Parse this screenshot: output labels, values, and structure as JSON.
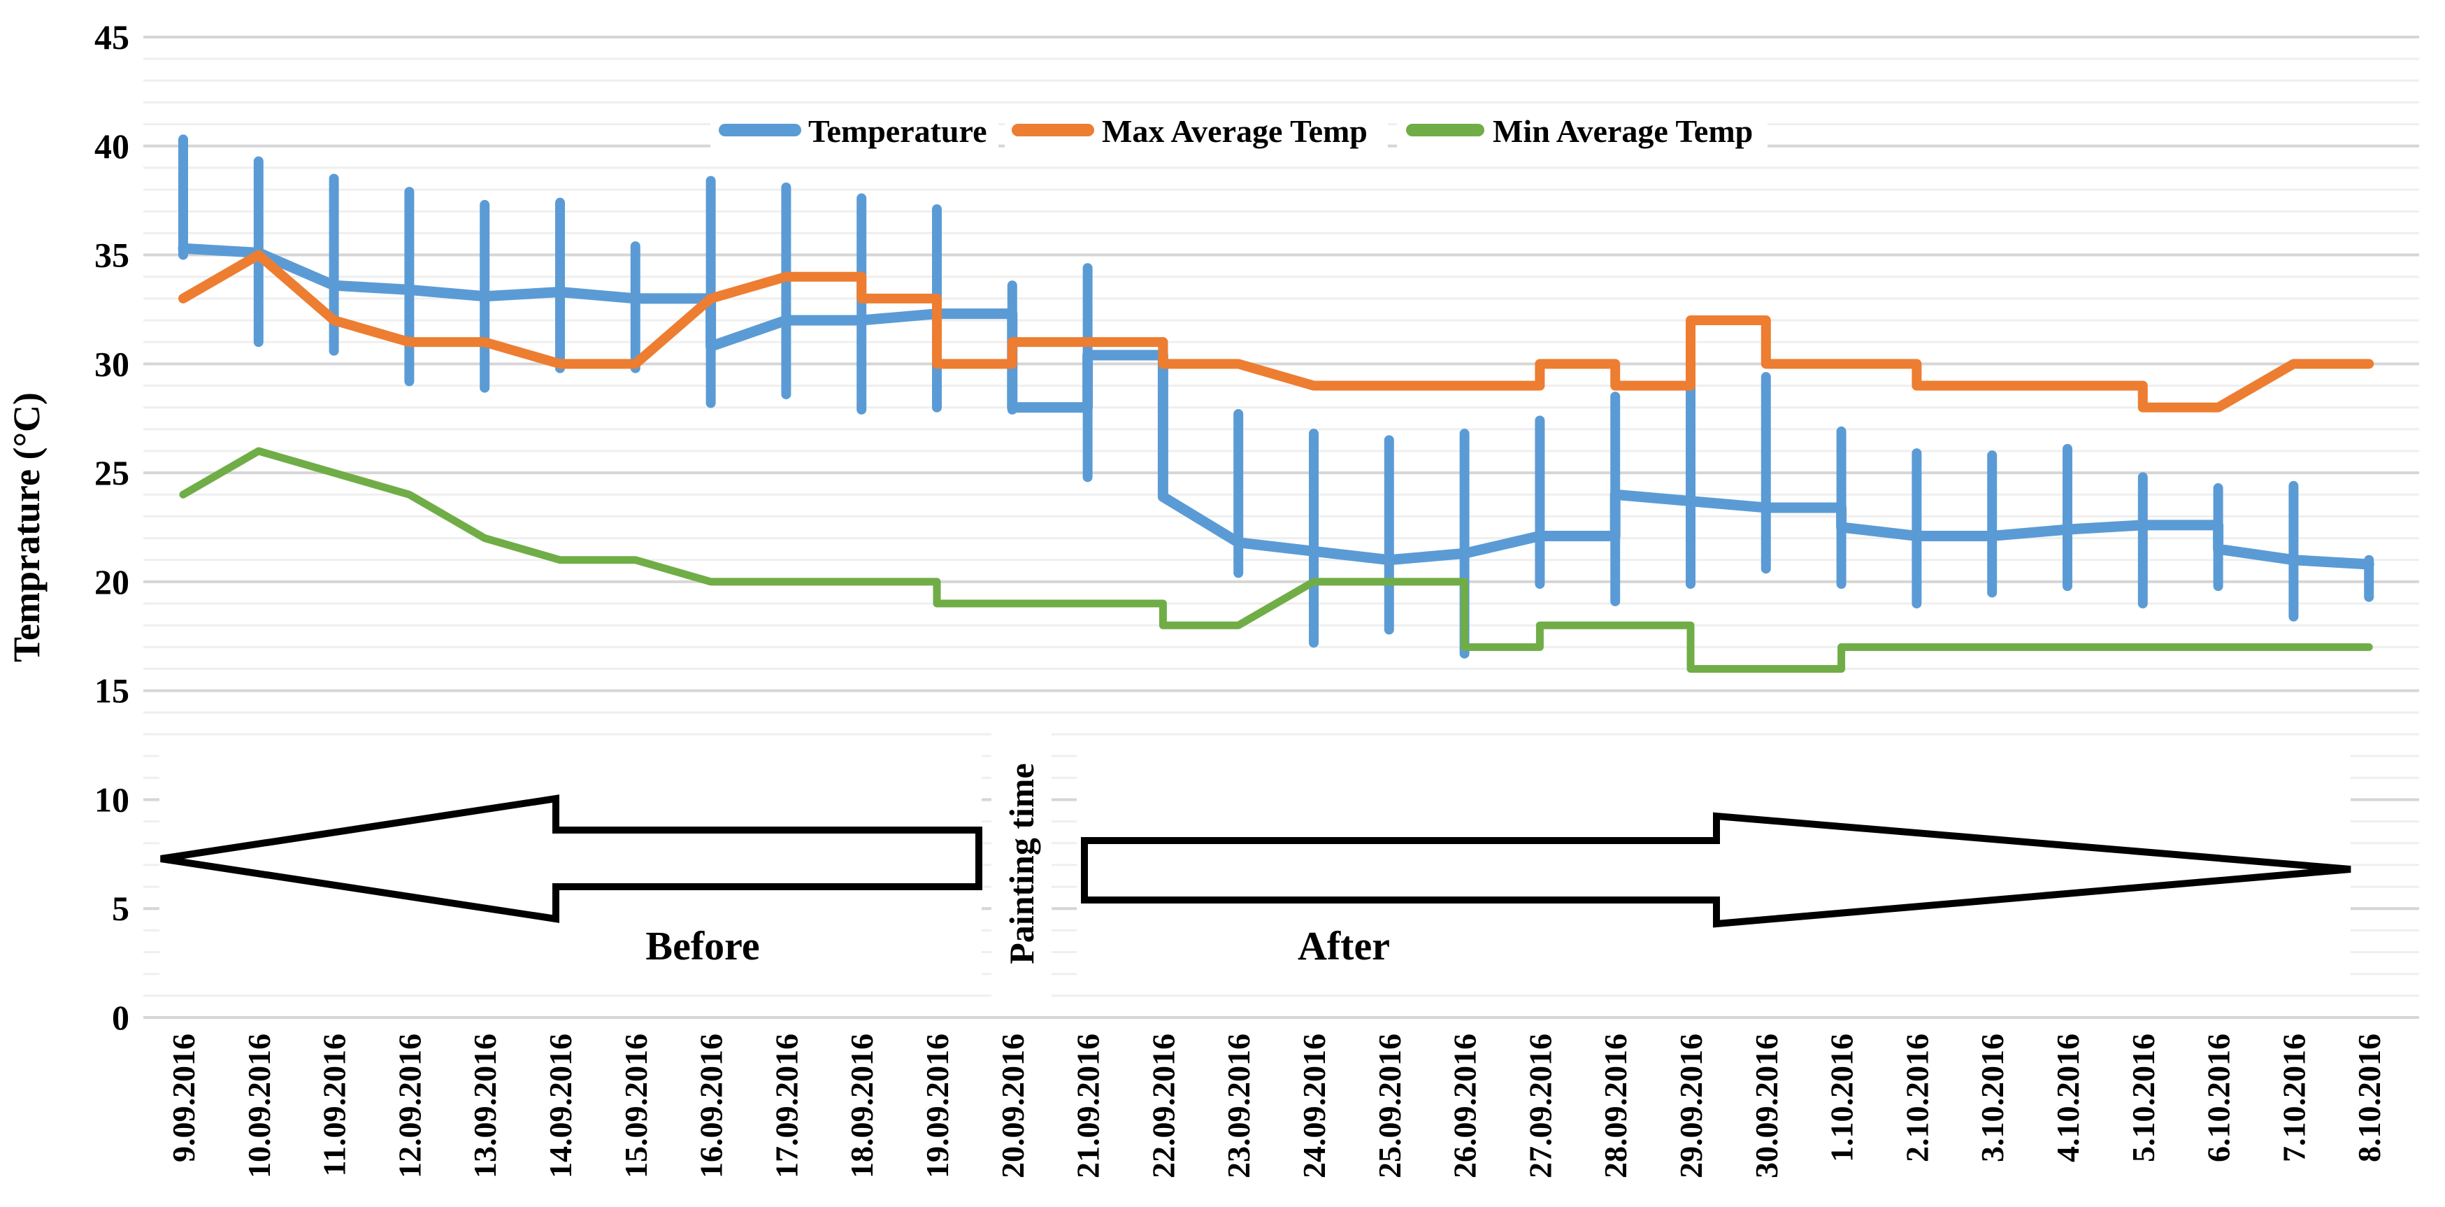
{
  "chart_data": {
    "type": "line",
    "title": "",
    "ylabel": "Temprature (°C)",
    "xlabel": "",
    "ylim": [
      0,
      45
    ],
    "y_major_step": 5,
    "y_minor_step": 1,
    "y_tick_labels": [
      "0",
      "5",
      "10",
      "15",
      "20",
      "25",
      "30",
      "35",
      "40",
      "45"
    ],
    "grid": "horizontal minor (1°C) and major (5°C) gridlines",
    "legend_position": "top-center",
    "categories": [
      "9.09.2016",
      "10.09.2016",
      "11.09.2016",
      "12.09.2016",
      "13.09.2016",
      "14.09.2016",
      "15.09.2016",
      "16.09.2016",
      "17.09.2016",
      "18.09.2016",
      "19.09.2016",
      "20.09.2016",
      "21.09.2016",
      "22.09.2016",
      "23.09.2016",
      "24.09.2016",
      "25.09.2016",
      "26.09.2016",
      "27.09.2016",
      "28.09.2016",
      "29.09.2016",
      "30.09.2016",
      "1.10.2016",
      "2.10.2016",
      "3.10.2016",
      "4.10.2016",
      "5.10.2016",
      "6.10.2016",
      "7.10.2016",
      "8.10.2016"
    ],
    "series": [
      {
        "name": "Temperature",
        "color": "#5B9BD5",
        "line_width": 15,
        "values": [
          35.3,
          35.1,
          33.6,
          33.4,
          33.1,
          33.3,
          33.0,
          30.8,
          32.0,
          32.0,
          32.3,
          28.0,
          30.4,
          23.9,
          21.8,
          21.4,
          21.0,
          21.3,
          22.1,
          24.0,
          23.7,
          23.4,
          22.5,
          22.1,
          22.1,
          22.4,
          22.6,
          21.5,
          21.0,
          20.8
        ],
        "error_low": [
          35.0,
          31.0,
          30.6,
          29.2,
          28.9,
          29.8,
          29.8,
          28.2,
          28.6,
          27.9,
          28.0,
          27.9,
          24.8,
          23.9,
          20.4,
          17.2,
          17.8,
          16.7,
          19.9,
          19.1,
          19.9,
          20.6,
          19.9,
          19.0,
          19.5,
          19.8,
          19.0,
          19.8,
          18.4,
          19.3
        ],
        "error_high": [
          40.3,
          39.3,
          38.5,
          37.9,
          37.3,
          37.4,
          35.4,
          38.4,
          38.1,
          37.6,
          37.1,
          33.6,
          34.4,
          31.0,
          27.7,
          26.8,
          26.5,
          26.8,
          27.4,
          28.5,
          28.9,
          29.4,
          26.9,
          25.9,
          25.8,
          26.1,
          24.8,
          24.3,
          24.4,
          21.0
        ],
        "transitions": [
          "s",
          "s",
          "s",
          "s",
          "s",
          "s",
          "t",
          "s",
          "s",
          "s",
          "t",
          "t",
          "t",
          "s",
          "s",
          "s",
          "s",
          "s",
          "t",
          "s",
          "s",
          "t",
          "s",
          "s",
          "s",
          "s",
          "t",
          "s",
          "s"
        ]
      },
      {
        "name": "Max Average Temp",
        "color": "#ED7D31",
        "line_width": 14,
        "values": [
          33,
          35,
          32,
          31,
          31,
          30,
          30,
          33,
          34,
          33,
          30,
          31,
          31,
          30,
          30,
          29,
          29,
          29,
          30,
          29,
          32,
          30,
          30,
          29,
          29,
          29,
          28,
          28,
          30,
          30
        ],
        "transitions": [
          "s",
          "s",
          "s",
          "s",
          "s",
          "s",
          "s",
          "s",
          "t",
          "t",
          "t",
          "s",
          "t",
          "s",
          "s",
          "s",
          "s",
          "t",
          "t",
          "t",
          "t",
          "s",
          "t",
          "s",
          "s",
          "t",
          "s",
          "s",
          "s"
        ]
      },
      {
        "name": "Min Average Temp",
        "color": "#70AD47",
        "line_width": 11,
        "values": [
          24,
          26,
          25,
          24,
          22,
          21,
          21,
          20,
          20,
          20,
          19,
          19,
          19,
          18,
          18,
          20,
          20,
          17,
          18,
          18,
          16,
          16,
          17,
          17,
          17,
          17,
          17,
          17,
          17,
          17
        ],
        "transitions": [
          "s",
          "s",
          "s",
          "s",
          "s",
          "s",
          "s",
          "s",
          "s",
          "t",
          "s",
          "s",
          "t",
          "s",
          "s",
          "s",
          "t",
          "t",
          "s",
          "t",
          "s",
          "t",
          "s",
          "s",
          "s",
          "s",
          "s",
          "s",
          "s"
        ]
      }
    ]
  },
  "annotations": {
    "painting_time_label": "Painting time",
    "before_label": "Before",
    "after_label": "After"
  }
}
